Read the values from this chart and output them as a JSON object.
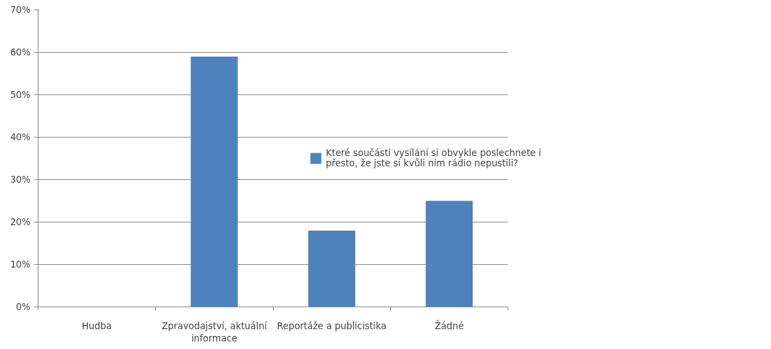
{
  "chart_data": {
    "type": "bar",
    "categories": [
      "Hudba",
      "Zpravodajství, aktuální informace",
      "Reportáže a publicistika",
      "Žádné"
    ],
    "series": [
      {
        "name": "Které součásti vysílání si obvykle poslechnete i přesto, že jste si kvůli nim rádio nepustili?",
        "color": "#4f81bd",
        "values": [
          0,
          59,
          18,
          25
        ]
      }
    ],
    "ylim": [
      0,
      70
    ],
    "yticks": [
      {
        "value": 0,
        "label": "0%"
      },
      {
        "value": 10,
        "label": "10%"
      },
      {
        "value": 20,
        "label": "20%"
      },
      {
        "value": 30,
        "label": "30%"
      },
      {
        "value": 40,
        "label": "40%"
      },
      {
        "value": 50,
        "label": "50%"
      },
      {
        "value": 60,
        "label": "60%"
      },
      {
        "value": 70,
        "label": "70%"
      }
    ],
    "grid": "y",
    "legend": "right"
  }
}
